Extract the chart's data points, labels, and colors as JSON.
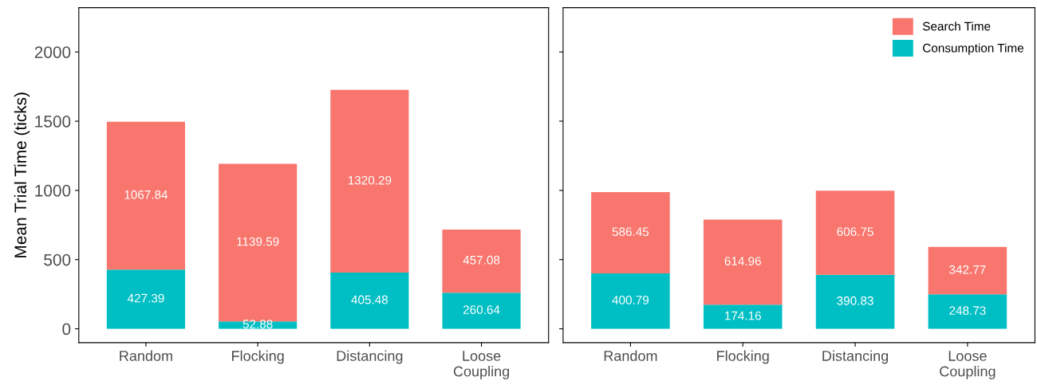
{
  "chart_data": [
    {
      "type": "bar",
      "stacked": true,
      "ylabel": "Mean Trial Time (ticks)",
      "categories": [
        "Random",
        "Flocking",
        "Distancing",
        "Loose\nCoupling"
      ],
      "ylim": [
        -100,
        2320
      ],
      "yticks": [
        0,
        500,
        1000,
        1500,
        2000
      ],
      "data_labels": true,
      "grid": false,
      "series": [
        {
          "color": "#00bfc4",
          "values": [
            427.39,
            52.88,
            405.48,
            260.64
          ]
        },
        {
          "color": "#f8766d",
          "values": [
            1067.84,
            1139.59,
            1320.29,
            457.08
          ]
        }
      ]
    },
    {
      "type": "bar",
      "stacked": true,
      "categories": [
        "Random",
        "Flocking",
        "Distancing",
        "Loose\nCoupling"
      ],
      "ylim": [
        -100,
        2320
      ],
      "yticks": [
        0,
        500,
        1000,
        1500,
        2000
      ],
      "tick_labels": "x",
      "data_labels": true,
      "grid": false,
      "legend": "top right",
      "series": [
        {
          "name": "Consumption Time",
          "color": "#00bfc4",
          "values": [
            400.79,
            174.16,
            390.83,
            248.73
          ]
        },
        {
          "name": "Search Time",
          "color": "#f8766d",
          "values": [
            586.45,
            614.96,
            606.75,
            342.77
          ]
        }
      ]
    }
  ]
}
